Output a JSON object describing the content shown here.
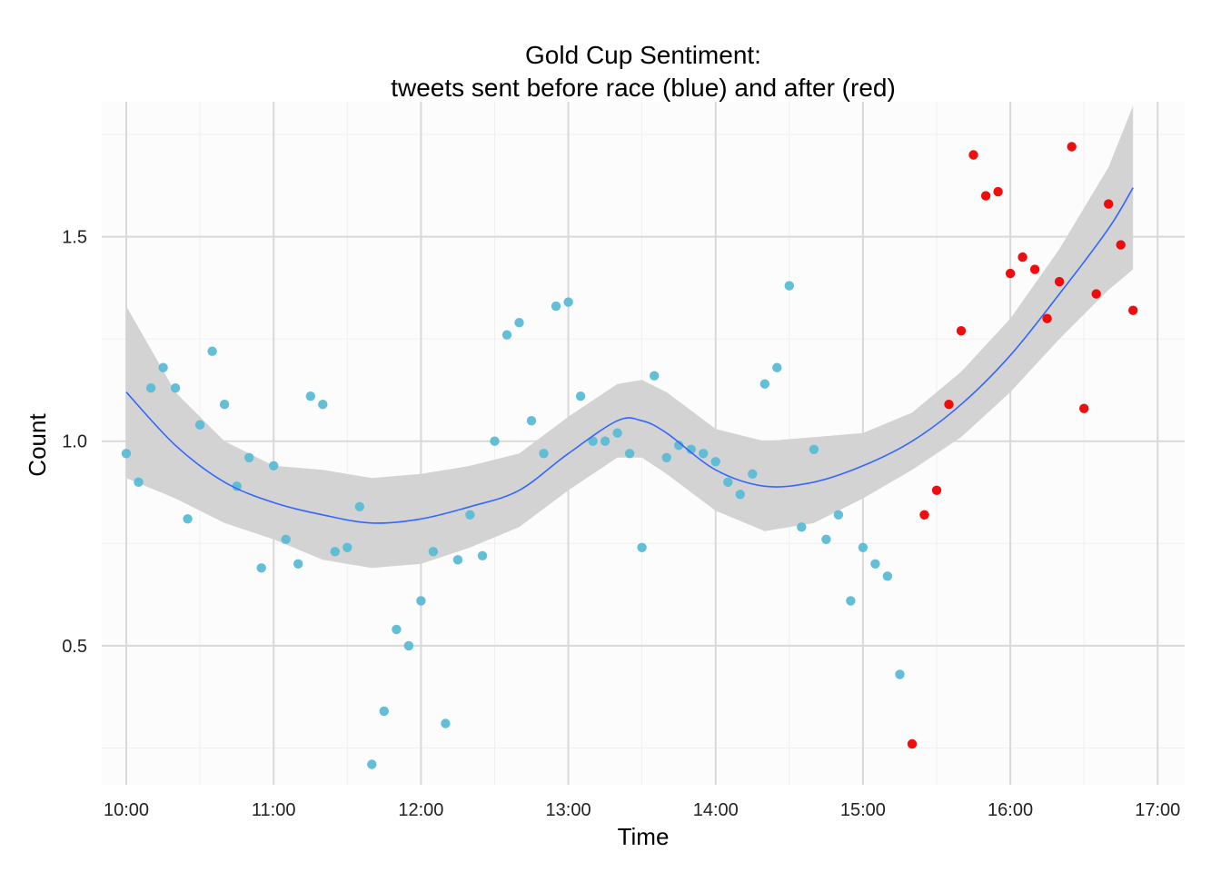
{
  "chart_data": {
    "type": "scatter",
    "title_line1": "Gold Cup Sentiment:",
    "title_line2": "tweets sent before race (blue) and after (red)",
    "xlabel": "Time",
    "ylabel": "Count",
    "x_ticks": [
      "10:00",
      "11:00",
      "12:00",
      "13:00",
      "14:00",
      "15:00",
      "16:00",
      "17:00"
    ],
    "y_ticks": [
      0.5,
      1.0,
      1.5
    ],
    "y_tick_labels": [
      "0.5",
      "1.0",
      "1.5"
    ],
    "xlim": [
      "09:50",
      "17:11"
    ],
    "ylim": [
      0.16,
      1.83
    ],
    "grid": true,
    "colors": {
      "before": "#5bbad5",
      "after": "#ee0000",
      "smooth_line": "#3366ff",
      "confidence_band": "#d3d3d3",
      "grid_major": "#d9d9d9",
      "grid_minor": "#f0f0f0",
      "panel": "#fcfcfc"
    },
    "series": [
      {
        "group": "before",
        "x": [
          "10:00",
          "10:05",
          "10:10",
          "10:15",
          "10:20",
          "10:25",
          "10:30",
          "10:35",
          "10:40",
          "10:45",
          "10:50",
          "10:55",
          "11:00",
          "11:05",
          "11:10",
          "11:15",
          "11:20",
          "11:25",
          "11:30",
          "11:35",
          "11:40",
          "11:45",
          "11:50",
          "11:55",
          "12:00",
          "12:05",
          "12:10",
          "12:15",
          "12:20",
          "12:25",
          "12:30",
          "12:35",
          "12:40",
          "12:45",
          "12:50",
          "12:55",
          "13:00",
          "13:05",
          "13:10",
          "13:15",
          "13:20",
          "13:25",
          "13:30",
          "13:35",
          "13:40",
          "13:45",
          "13:50",
          "13:55",
          "14:00",
          "14:05",
          "14:10",
          "14:15",
          "14:20",
          "14:25",
          "14:30",
          "14:35",
          "14:40",
          "14:45",
          "14:50",
          "14:55",
          "15:00",
          "15:05",
          "15:10",
          "15:15"
        ],
        "y": [
          0.97,
          0.9,
          1.13,
          1.18,
          1.13,
          0.81,
          1.04,
          1.22,
          1.09,
          0.89,
          0.96,
          0.69,
          0.94,
          0.76,
          0.7,
          1.11,
          1.09,
          0.73,
          0.74,
          0.84,
          0.21,
          0.34,
          0.54,
          0.5,
          0.61,
          0.73,
          0.31,
          0.71,
          0.82,
          0.72,
          1.0,
          1.26,
          1.29,
          1.05,
          0.97,
          1.33,
          1.34,
          1.11,
          1.0,
          1.0,
          1.02,
          0.97,
          0.74,
          1.16,
          0.96,
          0.99,
          0.98,
          0.97,
          0.95,
          0.9,
          0.87,
          0.92,
          1.14,
          1.18,
          1.38,
          0.79,
          0.98,
          0.76,
          0.82,
          0.61,
          0.74,
          0.7,
          0.67,
          0.43
        ]
      },
      {
        "group": "after",
        "x": [
          "15:20",
          "15:25",
          "15:30",
          "15:35",
          "15:40",
          "15:45",
          "15:50",
          "15:55",
          "16:00",
          "16:05",
          "16:10",
          "16:15",
          "16:20",
          "16:25",
          "16:30",
          "16:35",
          "16:40",
          "16:45",
          "16:50"
        ],
        "y": [
          0.26,
          0.82,
          0.88,
          1.09,
          1.27,
          1.7,
          1.6,
          1.61,
          1.41,
          1.45,
          1.42,
          1.3,
          1.39,
          1.72,
          1.08,
          1.36,
          1.58,
          1.48,
          1.32
        ]
      }
    ],
    "smooth": {
      "x": [
        "10:00",
        "10:20",
        "10:40",
        "11:00",
        "11:20",
        "11:40",
        "12:00",
        "12:20",
        "12:40",
        "13:00",
        "13:20",
        "13:30",
        "13:40",
        "14:00",
        "14:20",
        "14:40",
        "15:00",
        "15:20",
        "15:40",
        "16:00",
        "16:20",
        "16:40",
        "16:50"
      ],
      "y": [
        1.12,
        0.99,
        0.9,
        0.85,
        0.82,
        0.8,
        0.81,
        0.84,
        0.88,
        0.97,
        1.05,
        1.05,
        1.02,
        0.93,
        0.89,
        0.9,
        0.94,
        1.0,
        1.09,
        1.21,
        1.36,
        1.52,
        1.62
      ],
      "lower": [
        0.91,
        0.86,
        0.8,
        0.76,
        0.71,
        0.69,
        0.7,
        0.74,
        0.79,
        0.88,
        0.96,
        0.96,
        0.92,
        0.83,
        0.78,
        0.8,
        0.86,
        0.93,
        1.01,
        1.12,
        1.25,
        1.37,
        1.42
      ],
      "upper": [
        1.33,
        1.12,
        1.0,
        0.94,
        0.93,
        0.91,
        0.92,
        0.94,
        0.97,
        1.06,
        1.14,
        1.15,
        1.12,
        1.03,
        1.0,
        1.01,
        1.02,
        1.07,
        1.17,
        1.3,
        1.47,
        1.67,
        1.82
      ]
    }
  }
}
